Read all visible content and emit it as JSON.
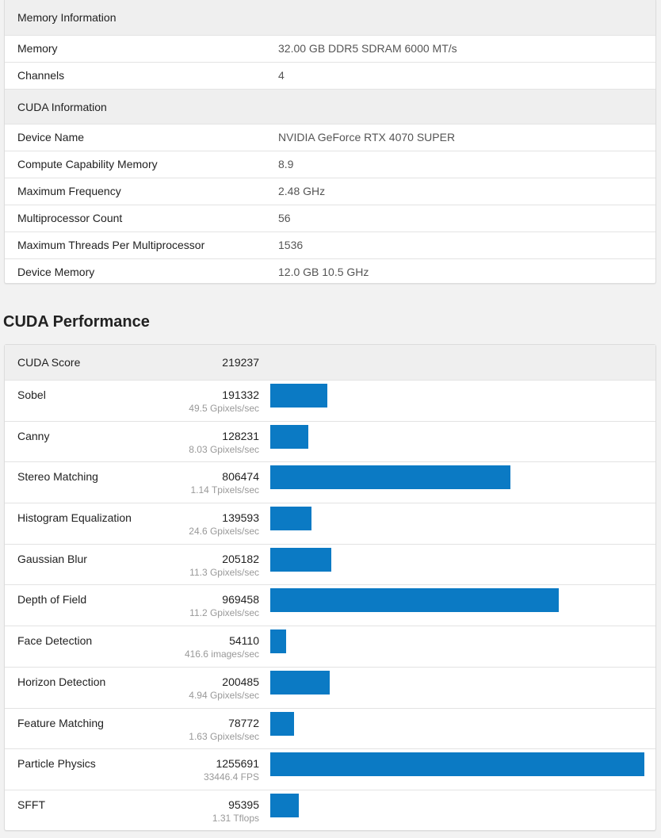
{
  "memory_section": {
    "header": "Memory Information",
    "rows": [
      {
        "label": "Memory",
        "value": "32.00 GB DDR5 SDRAM 6000 MT/s"
      },
      {
        "label": "Channels",
        "value": "4"
      }
    ]
  },
  "cuda_section": {
    "header": "CUDA Information",
    "rows": [
      {
        "label": "Device Name",
        "value": "NVIDIA GeForce RTX 4070 SUPER"
      },
      {
        "label": "Compute Capability Memory",
        "value": "8.9"
      },
      {
        "label": "Maximum Frequency",
        "value": "2.48 GHz"
      },
      {
        "label": "Multiprocessor Count",
        "value": "56"
      },
      {
        "label": "Maximum Threads Per Multiprocessor",
        "value": "1536"
      },
      {
        "label": "Device Memory",
        "value": "12.0 GB 10.5 GHz"
      }
    ]
  },
  "performance": {
    "title": "CUDA Performance",
    "score_label": "CUDA Score",
    "score_value": "219237",
    "bar_color": "#0b7ac4",
    "max_score": 1255691,
    "benchmarks": [
      {
        "name": "Sobel",
        "score": "191332",
        "rate": "49.5 Gpixels/sec"
      },
      {
        "name": "Canny",
        "score": "128231",
        "rate": "8.03 Gpixels/sec"
      },
      {
        "name": "Stereo Matching",
        "score": "806474",
        "rate": "1.14 Tpixels/sec"
      },
      {
        "name": "Histogram Equalization",
        "score": "139593",
        "rate": "24.6 Gpixels/sec"
      },
      {
        "name": "Gaussian Blur",
        "score": "205182",
        "rate": "11.3 Gpixels/sec"
      },
      {
        "name": "Depth of Field",
        "score": "969458",
        "rate": "11.2 Gpixels/sec"
      },
      {
        "name": "Face Detection",
        "score": "54110",
        "rate": "416.6 images/sec"
      },
      {
        "name": "Horizon Detection",
        "score": "200485",
        "rate": "4.94 Gpixels/sec"
      },
      {
        "name": "Feature Matching",
        "score": "78772",
        "rate": "1.63 Gpixels/sec"
      },
      {
        "name": "Particle Physics",
        "score": "1255691",
        "rate": "33446.4 FPS"
      },
      {
        "name": "SFFT",
        "score": "95395",
        "rate": "1.31 Tflops"
      }
    ]
  }
}
